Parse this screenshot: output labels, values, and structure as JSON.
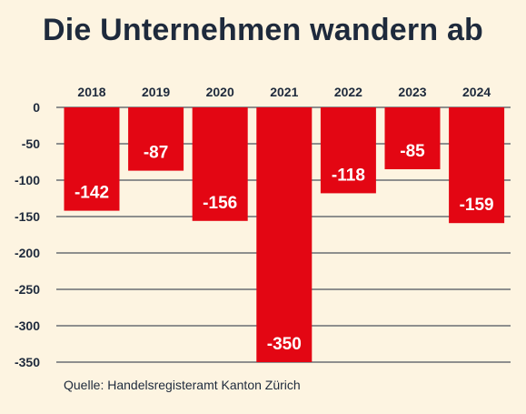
{
  "title": "Die Unternehmen wandern ab",
  "source": "Quelle: Handelsregisteramt Kanton Zürich",
  "colors": {
    "bar": "#e30613",
    "grid": "#1e2a3c",
    "background": "#fdf4e1",
    "text": "#1e2a3c",
    "label": "#ffffff"
  },
  "chart_data": {
    "type": "bar",
    "categories": [
      "2018",
      "2019",
      "2020",
      "2021",
      "2022",
      "2023",
      "2024"
    ],
    "values": [
      -142,
      -87,
      -156,
      -350,
      -118,
      -85,
      -159
    ],
    "data_labels": [
      "-142",
      "-87",
      "-156",
      "-350",
      "-118",
      "-85",
      "-159"
    ],
    "yticks": [
      "0",
      "-50",
      "-100",
      "-150",
      "-200",
      "-250",
      "-300",
      "-350"
    ],
    "ylim": [
      -350,
      0
    ],
    "grid": true,
    "category_axis_position": "top",
    "title": "Die Unternehmen wandern ab",
    "xlabel": "",
    "ylabel": ""
  }
}
